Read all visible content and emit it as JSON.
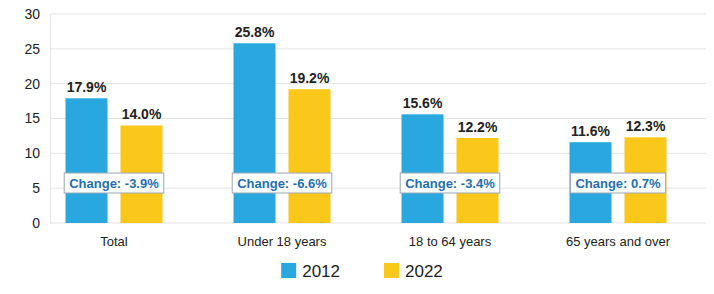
{
  "chart_data": {
    "type": "bar",
    "categories": [
      "Total",
      "Under 18 years",
      "18 to 64 years",
      "65 years and over"
    ],
    "series": [
      {
        "name": "2012",
        "color": "#29a8e0",
        "values": [
          17.9,
          25.8,
          15.6,
          11.6
        ],
        "value_labels": [
          "17.9%",
          "25.8%",
          "15.6%",
          "11.6%"
        ]
      },
      {
        "name": "2022",
        "color": "#f9c81b",
        "values": [
          14.0,
          19.2,
          12.2,
          12.3
        ],
        "value_labels": [
          "14.0%",
          "19.2%",
          "12.2%",
          "12.3%"
        ]
      }
    ],
    "annotations": [
      "Change: -3.9%",
      "Change: -6.6%",
      "Change: -3.4%",
      "Change: 0.7%"
    ],
    "ylim": [
      0,
      30
    ],
    "yticks": [
      0,
      5,
      10,
      15,
      20,
      25,
      30
    ],
    "grid": true,
    "data_labels": true,
    "legend": "bottom"
  }
}
